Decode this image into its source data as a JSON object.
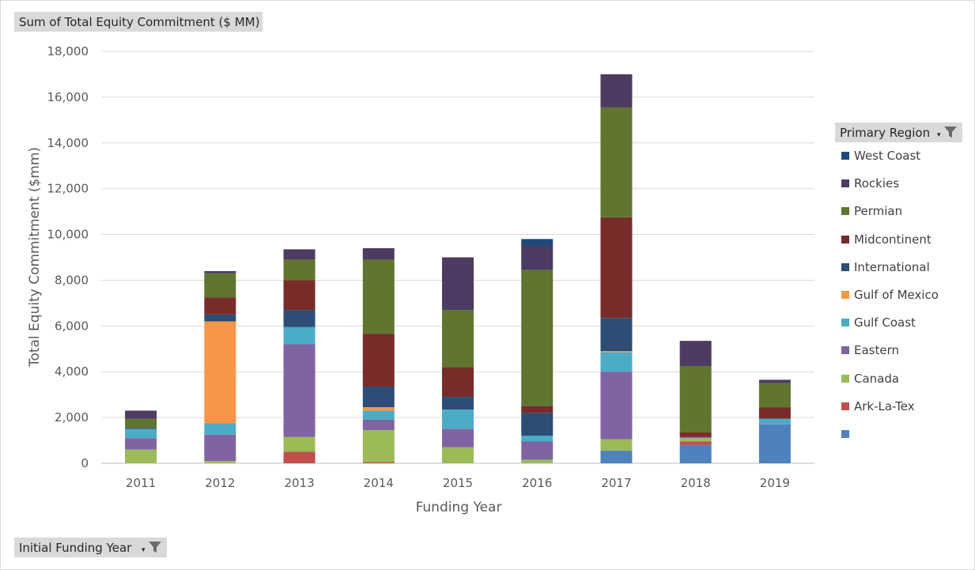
{
  "header": {
    "value_field": "Sum of Total Equity Commitment ($ MM)",
    "legend_field": "Primary Region",
    "axis_field": "Initial Funding Year"
  },
  "icons": {
    "filter": "filter-funnel-icon",
    "dropdown": "dropdown-arrow-icon"
  },
  "chart_data": {
    "type": "bar",
    "stacked": true,
    "xlabel": "Funding Year",
    "ylabel": "Total Equity Commitment ($mm)",
    "ylim": [
      0,
      18000
    ],
    "yticks": [
      "0",
      "2,000",
      "4,000",
      "6,000",
      "8,000",
      "10,000",
      "12,000",
      "14,000",
      "16,000",
      "18,000"
    ],
    "grid": true,
    "legend_position": "right",
    "categories": [
      "2011",
      "2012",
      "2013",
      "2014",
      "2015",
      "2016",
      "2017",
      "2018",
      "2019"
    ],
    "series": [
      {
        "name": "",
        "color": "#4f81bd",
        "values": [
          0,
          0,
          0,
          0,
          0,
          0,
          550,
          800,
          1700
        ]
      },
      {
        "name": "Ark-La-Tex",
        "color": "#c0504d",
        "values": [
          0,
          0,
          500,
          50,
          0,
          0,
          0,
          150,
          0
        ]
      },
      {
        "name": "Canada",
        "color": "#9bbb59",
        "values": [
          600,
          100,
          650,
          1400,
          700,
          150,
          500,
          150,
          0
        ]
      },
      {
        "name": "Eastern",
        "color": "#8064a2",
        "values": [
          500,
          1150,
          4050,
          450,
          800,
          800,
          2950,
          50,
          0
        ]
      },
      {
        "name": "Gulf Coast",
        "color": "#4bacc6",
        "values": [
          400,
          500,
          750,
          400,
          850,
          250,
          850,
          0,
          250
        ]
      },
      {
        "name": "Gulf of Mexico",
        "color": "#f79646",
        "values": [
          0,
          4450,
          0,
          150,
          0,
          0,
          50,
          0,
          0
        ]
      },
      {
        "name": "International",
        "color": "#2c4d75",
        "values": [
          50,
          300,
          750,
          900,
          550,
          1000,
          1450,
          0,
          0
        ]
      },
      {
        "name": "Midcontinent",
        "color": "#772c2a",
        "values": [
          0,
          750,
          1300,
          2300,
          1300,
          300,
          4400,
          200,
          500
        ]
      },
      {
        "name": "Permian",
        "color": "#5f7530",
        "values": [
          400,
          1050,
          900,
          3250,
          2500,
          5950,
          4800,
          2900,
          1050
        ]
      },
      {
        "name": "Rockies",
        "color": "#4d3b62",
        "values": [
          350,
          100,
          450,
          500,
          2300,
          1050,
          1450,
          1100,
          150
        ]
      },
      {
        "name": "West Coast",
        "color": "#1f497d",
        "values": [
          0,
          0,
          0,
          0,
          0,
          300,
          0,
          0,
          0
        ]
      }
    ]
  }
}
